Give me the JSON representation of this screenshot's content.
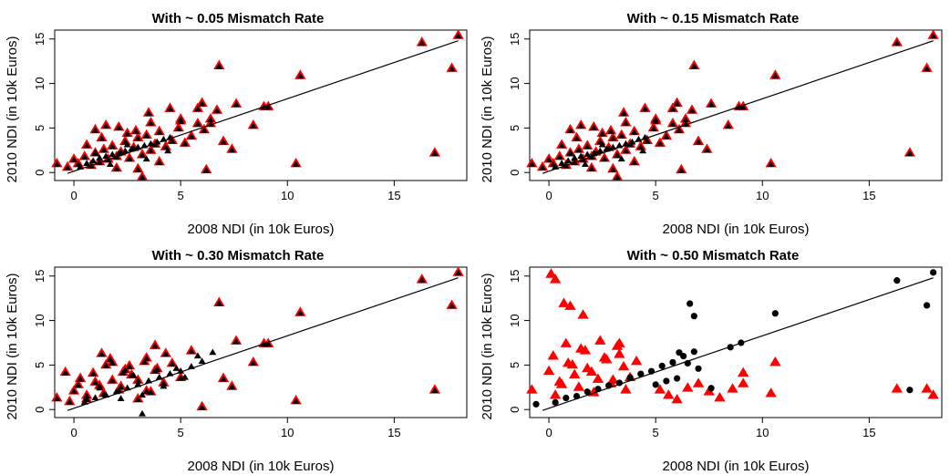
{
  "figure": {
    "colors": {
      "matched": "#000000",
      "mismatched": "#ff0000",
      "fit_line": "#000000"
    }
  },
  "chart_data": [
    {
      "type": "scatter",
      "title": "With ~ 0.05 Mismatch Rate",
      "xlabel": "2008 NDI (in 10k Euros)",
      "ylabel": "2010 NDI (in 10k Euros)",
      "xlim": [
        -0.9,
        18.4
      ],
      "ylim": [
        -0.9,
        16.0
      ],
      "xticks": [
        0,
        5,
        10,
        15
      ],
      "yticks": [
        0,
        5,
        10,
        15
      ],
      "fit_line": {
        "x": [
          -0.3,
          18.0
        ],
        "y": [
          -0.1,
          14.8
        ]
      },
      "matched": {
        "x": [
          0.3,
          0.6,
          0.9,
          1.2,
          1.5,
          1.8,
          2.1,
          2.4,
          2.7,
          3.0,
          3.3,
          3.6,
          3.9,
          4.2,
          4.5,
          1.0,
          1.7,
          2.5,
          3.4,
          4.4
        ],
        "y": [
          0.6,
          1.0,
          1.3,
          1.6,
          1.8,
          2.0,
          2.1,
          2.4,
          2.6,
          2.8,
          3.0,
          3.2,
          3.4,
          3.7,
          3.9,
          2.2,
          0.9,
          3.1,
          1.5,
          2.4
        ]
      },
      "mismatched": {
        "x": [
          -0.8,
          -0.3,
          0.0,
          0.2,
          0.5,
          0.8,
          1.0,
          1.2,
          1.4,
          1.6,
          1.8,
          2.0,
          2.2,
          2.4,
          2.6,
          2.8,
          3.0,
          3.2,
          3.4,
          3.6,
          3.8,
          4.0,
          4.3,
          4.6,
          4.9,
          5.2,
          5.5,
          5.8,
          6.1,
          6.4,
          6.7,
          1.0,
          1.5,
          2.0,
          2.5,
          3.0,
          3.5,
          4.0,
          4.5,
          5.0,
          1.3,
          2.1,
          2.9,
          3.6,
          0.6,
          3.2,
          5.0,
          5.8,
          6.0,
          6.2,
          6.4,
          6.8,
          7.0,
          7.4,
          7.6,
          8.4,
          8.9,
          9.1,
          10.4,
          10.6,
          16.3,
          16.9,
          17.7,
          18.0
        ],
        "y": [
          1.0,
          0.6,
          1.5,
          1.0,
          1.8,
          0.8,
          2.2,
          1.2,
          2.6,
          1.5,
          3.0,
          1.8,
          2.3,
          3.5,
          1.6,
          2.8,
          3.9,
          2.0,
          4.2,
          2.5,
          3.2,
          4.6,
          2.9,
          3.6,
          5.0,
          3.3,
          4.1,
          5.5,
          4.8,
          6.0,
          7.0,
          4.8,
          5.3,
          0.5,
          4.4,
          0.4,
          6.7,
          1.2,
          7.2,
          5.8,
          3.9,
          5.1,
          4.7,
          5.6,
          3.1,
          -0.5,
          6.0,
          7.2,
          7.8,
          0.3,
          5.5,
          12.0,
          3.5,
          2.6,
          7.7,
          5.3,
          7.4,
          7.4,
          1.0,
          10.9,
          14.6,
          2.2,
          11.7,
          15.4
        ]
      }
    },
    {
      "type": "scatter",
      "title": "With ~ 0.15 Mismatch Rate",
      "xlabel": "2008 NDI (in 10k Euros)",
      "ylabel": "2010 NDI (in 10k Euros)",
      "xlim": [
        -0.9,
        18.4
      ],
      "ylim": [
        -0.9,
        16.0
      ],
      "xticks": [
        0,
        5,
        10,
        15
      ],
      "yticks": [
        0,
        5,
        10,
        15
      ],
      "fit_line": {
        "x": [
          -0.3,
          18.0
        ],
        "y": [
          -0.1,
          14.8
        ]
      },
      "matched": {
        "x": [
          0.3,
          0.6,
          0.9,
          1.2,
          1.5,
          1.8,
          2.1,
          2.4,
          2.7,
          3.0,
          3.3,
          3.6,
          3.9,
          4.2,
          4.5,
          1.0,
          1.7,
          2.5,
          3.4,
          4.4
        ],
        "y": [
          0.6,
          1.0,
          1.3,
          1.6,
          1.8,
          2.0,
          2.1,
          2.4,
          2.6,
          2.8,
          3.0,
          3.2,
          3.4,
          3.7,
          3.9,
          2.2,
          0.9,
          3.1,
          1.5,
          2.4
        ]
      },
      "mismatched": {
        "x": [
          -0.8,
          -0.3,
          0.0,
          0.2,
          0.5,
          0.8,
          1.0,
          1.2,
          1.4,
          1.6,
          1.8,
          2.0,
          2.2,
          2.4,
          2.6,
          2.8,
          3.0,
          3.2,
          3.4,
          3.6,
          3.8,
          4.0,
          4.3,
          4.6,
          4.9,
          5.2,
          5.5,
          5.8,
          6.1,
          6.4,
          6.7,
          1.0,
          1.5,
          2.0,
          2.5,
          3.0,
          3.5,
          4.0,
          4.5,
          5.0,
          1.3,
          2.1,
          2.9,
          3.6,
          0.6,
          3.2,
          5.0,
          5.8,
          6.0,
          6.2,
          6.4,
          6.8,
          7.0,
          7.4,
          7.6,
          8.4,
          8.9,
          9.1,
          10.4,
          10.6,
          16.3,
          16.9,
          17.7,
          18.0
        ],
        "y": [
          1.0,
          0.6,
          1.5,
          1.0,
          1.8,
          0.8,
          2.2,
          1.2,
          2.6,
          1.5,
          3.0,
          1.8,
          2.3,
          3.5,
          1.6,
          2.8,
          3.9,
          2.0,
          4.2,
          2.5,
          3.2,
          4.6,
          2.9,
          3.6,
          5.0,
          3.3,
          4.1,
          5.5,
          4.8,
          6.0,
          7.0,
          4.8,
          5.3,
          0.5,
          4.4,
          0.4,
          6.7,
          1.2,
          7.2,
          5.8,
          3.9,
          5.1,
          4.7,
          5.6,
          3.1,
          -0.5,
          6.0,
          7.2,
          7.8,
          0.3,
          5.5,
          12.0,
          3.5,
          2.6,
          7.7,
          5.3,
          7.4,
          7.4,
          1.0,
          10.9,
          14.6,
          2.2,
          11.7,
          15.4
        ]
      }
    },
    {
      "type": "scatter",
      "title": "With ~ 0.30 Mismatch Rate",
      "xlabel": "2008 NDI (in 10k Euros)",
      "ylabel": "2010 NDI (in 10k Euros)",
      "xlim": [
        -0.9,
        18.4
      ],
      "ylim": [
        -0.9,
        16.0
      ],
      "xticks": [
        0,
        5,
        10,
        15
      ],
      "yticks": [
        0,
        5,
        10,
        15
      ],
      "fit_line": {
        "x": [
          -0.3,
          18.0
        ],
        "y": [
          -0.1,
          14.8
        ]
      },
      "matched": {
        "x": [
          0.5,
          1.0,
          1.5,
          2.0,
          2.5,
          3.0,
          3.5,
          4.0,
          4.5,
          5.0,
          5.5,
          6.0,
          1.2,
          2.2,
          3.2,
          4.2,
          5.2,
          3.2,
          2.8,
          4.8,
          5.8,
          6.5
        ],
        "y": [
          0.8,
          1.3,
          1.6,
          2.0,
          2.4,
          2.8,
          3.2,
          3.6,
          4.0,
          4.3,
          4.8,
          5.4,
          2.4,
          1.2,
          1.6,
          2.6,
          3.6,
          -0.5,
          3.8,
          4.6,
          6.0,
          6.4
        ]
      },
      "mismatched": {
        "x": [
          -0.8,
          -0.4,
          -0.2,
          0.0,
          0.3,
          0.6,
          0.9,
          1.2,
          1.5,
          1.8,
          2.1,
          2.4,
          2.7,
          3.0,
          3.3,
          3.6,
          3.9,
          4.2,
          4.6,
          5.0,
          0.2,
          0.6,
          1.0,
          1.4,
          1.8,
          2.2,
          2.6,
          3.0,
          3.4,
          3.8,
          4.3,
          1.3,
          1.7,
          2.3,
          3.4,
          3.8,
          5.5,
          6.0,
          6.8,
          7.0,
          7.4,
          7.6,
          8.4,
          8.9,
          9.1,
          10.4,
          10.6,
          16.3,
          16.9,
          17.7,
          18.0
        ],
        "y": [
          1.3,
          4.2,
          0.9,
          2.1,
          3.5,
          1.6,
          4.1,
          2.7,
          5.0,
          3.3,
          2.2,
          4.5,
          3.9,
          1.2,
          5.4,
          2.0,
          4.6,
          3.0,
          5.2,
          3.6,
          2.8,
          1.2,
          3.1,
          1.8,
          5.3,
          2.6,
          4.9,
          3.3,
          2.1,
          4.4,
          6.3,
          6.3,
          5.7,
          4.2,
          5.8,
          7.2,
          6.6,
          0.3,
          12.0,
          3.5,
          2.6,
          7.7,
          5.3,
          7.4,
          7.4,
          1.0,
          10.9,
          14.6,
          2.2,
          11.7,
          15.4
        ]
      }
    },
    {
      "type": "scatter",
      "title": "With ~ 0.50 Mismatch Rate",
      "xlabel": "2008 NDI (in 10k Euros)",
      "ylabel": "2010 NDI (in 10k Euros)",
      "xlim": [
        -0.9,
        18.4
      ],
      "ylim": [
        -0.9,
        16.0
      ],
      "xticks": [
        0,
        5,
        10,
        15
      ],
      "yticks": [
        0,
        5,
        10,
        15
      ],
      "fit_line": {
        "x": [
          -0.3,
          18.0
        ],
        "y": [
          -0.1,
          14.8
        ]
      },
      "matched": {
        "x": [
          -0.6,
          0.3,
          0.8,
          1.3,
          1.8,
          2.3,
          2.8,
          3.3,
          3.8,
          4.3,
          4.8,
          5.3,
          5.8,
          6.3,
          6.8,
          5.0,
          5.5,
          6.0,
          6.5,
          7.0,
          7.6,
          8.5,
          9.0,
          10.6,
          16.3,
          17.7,
          18.0,
          16.9,
          6.6,
          6.8,
          6.1
        ],
        "y": [
          0.6,
          0.8,
          1.3,
          1.5,
          2.0,
          2.3,
          2.7,
          3.0,
          3.6,
          4.0,
          4.3,
          4.9,
          5.3,
          6.0,
          6.5,
          2.8,
          3.2,
          3.5,
          5.2,
          4.6,
          2.4,
          7.0,
          7.5,
          10.8,
          14.5,
          11.7,
          15.4,
          2.2,
          11.9,
          10.5,
          6.4
        ]
      },
      "mismatched": {
        "x": [
          -0.8,
          0.0,
          0.2,
          0.5,
          0.8,
          1.1,
          1.4,
          1.7,
          2.0,
          2.3,
          2.6,
          2.9,
          3.2,
          3.5,
          3.8,
          4.1,
          0.3,
          0.6,
          0.9,
          1.2,
          1.5,
          1.8,
          2.1,
          2.4,
          2.7,
          3.0,
          3.3,
          3.6,
          0.1,
          0.3,
          0.7,
          1.0,
          1.6,
          3.3,
          5.2,
          5.6,
          6.0,
          6.5,
          7.0,
          7.5,
          8.0,
          8.6,
          9.1,
          9.1,
          10.4,
          10.6,
          16.3,
          17.7,
          18.0
        ],
        "y": [
          2.2,
          4.3,
          6.0,
          3.1,
          7.4,
          5.0,
          2.5,
          6.6,
          4.2,
          3.4,
          5.8,
          2.9,
          7.1,
          4.8,
          3.6,
          5.4,
          1.6,
          2.8,
          5.2,
          3.9,
          6.8,
          4.6,
          1.9,
          7.7,
          5.6,
          3.3,
          6.2,
          2.2,
          15.2,
          14.6,
          11.9,
          11.6,
          10.6,
          7.4,
          2.2,
          1.6,
          1.1,
          2.4,
          2.9,
          2.0,
          1.3,
          2.3,
          4.1,
          2.9,
          1.8,
          5.3,
          2.3,
          2.3,
          1.6
        ]
      }
    }
  ]
}
